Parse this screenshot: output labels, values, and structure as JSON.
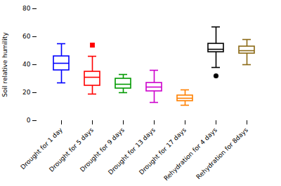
{
  "chart_data": {
    "type": "box",
    "categories": [
      "Drought for 1 day",
      "Drought for 5 days",
      "Drought for 9 days",
      "Drought for 13 days",
      "Drought for 17 days",
      "Rehydration for 4 days",
      "Rehydration for 8days"
    ],
    "colors": [
      "#0000FF",
      "#FF0000",
      "#009900",
      "#CC00CC",
      "#FF8000",
      "#000000",
      "#8B6914"
    ],
    "boxes": [
      {
        "whislo": 27,
        "q1": 36,
        "med": 41,
        "q3": 46,
        "whishi": 55,
        "fliers_high": [],
        "fliers_low": []
      },
      {
        "whislo": 19,
        "q1": 25,
        "med": 31,
        "q3": 35,
        "whishi": 46,
        "fliers_high": [
          54
        ],
        "fliers_low": []
      },
      {
        "whislo": 20,
        "q1": 23,
        "med": 26,
        "q3": 30,
        "whishi": 33,
        "fliers_high": [],
        "fliers_low": []
      },
      {
        "whislo": 13,
        "q1": 21,
        "med": 24,
        "q3": 27,
        "whishi": 36,
        "fliers_high": [],
        "fliers_low": []
      },
      {
        "whislo": 11,
        "q1": 14,
        "med": 16,
        "q3": 18,
        "whishi": 22,
        "fliers_high": [],
        "fliers_low": []
      },
      {
        "whislo": 38,
        "q1": 49,
        "med": 51,
        "q3": 55,
        "whishi": 67,
        "fliers_high": [],
        "fliers_low": [
          32
        ]
      },
      {
        "whislo": 40,
        "q1": 48,
        "med": 50,
        "q3": 53,
        "whishi": 58,
        "fliers_high": [],
        "fliers_low": []
      }
    ],
    "ylabel": "Soil relative humility",
    "ylim": [
      0,
      80
    ],
    "yticks": [
      0,
      20,
      40,
      60,
      80
    ],
    "grid": false
  }
}
